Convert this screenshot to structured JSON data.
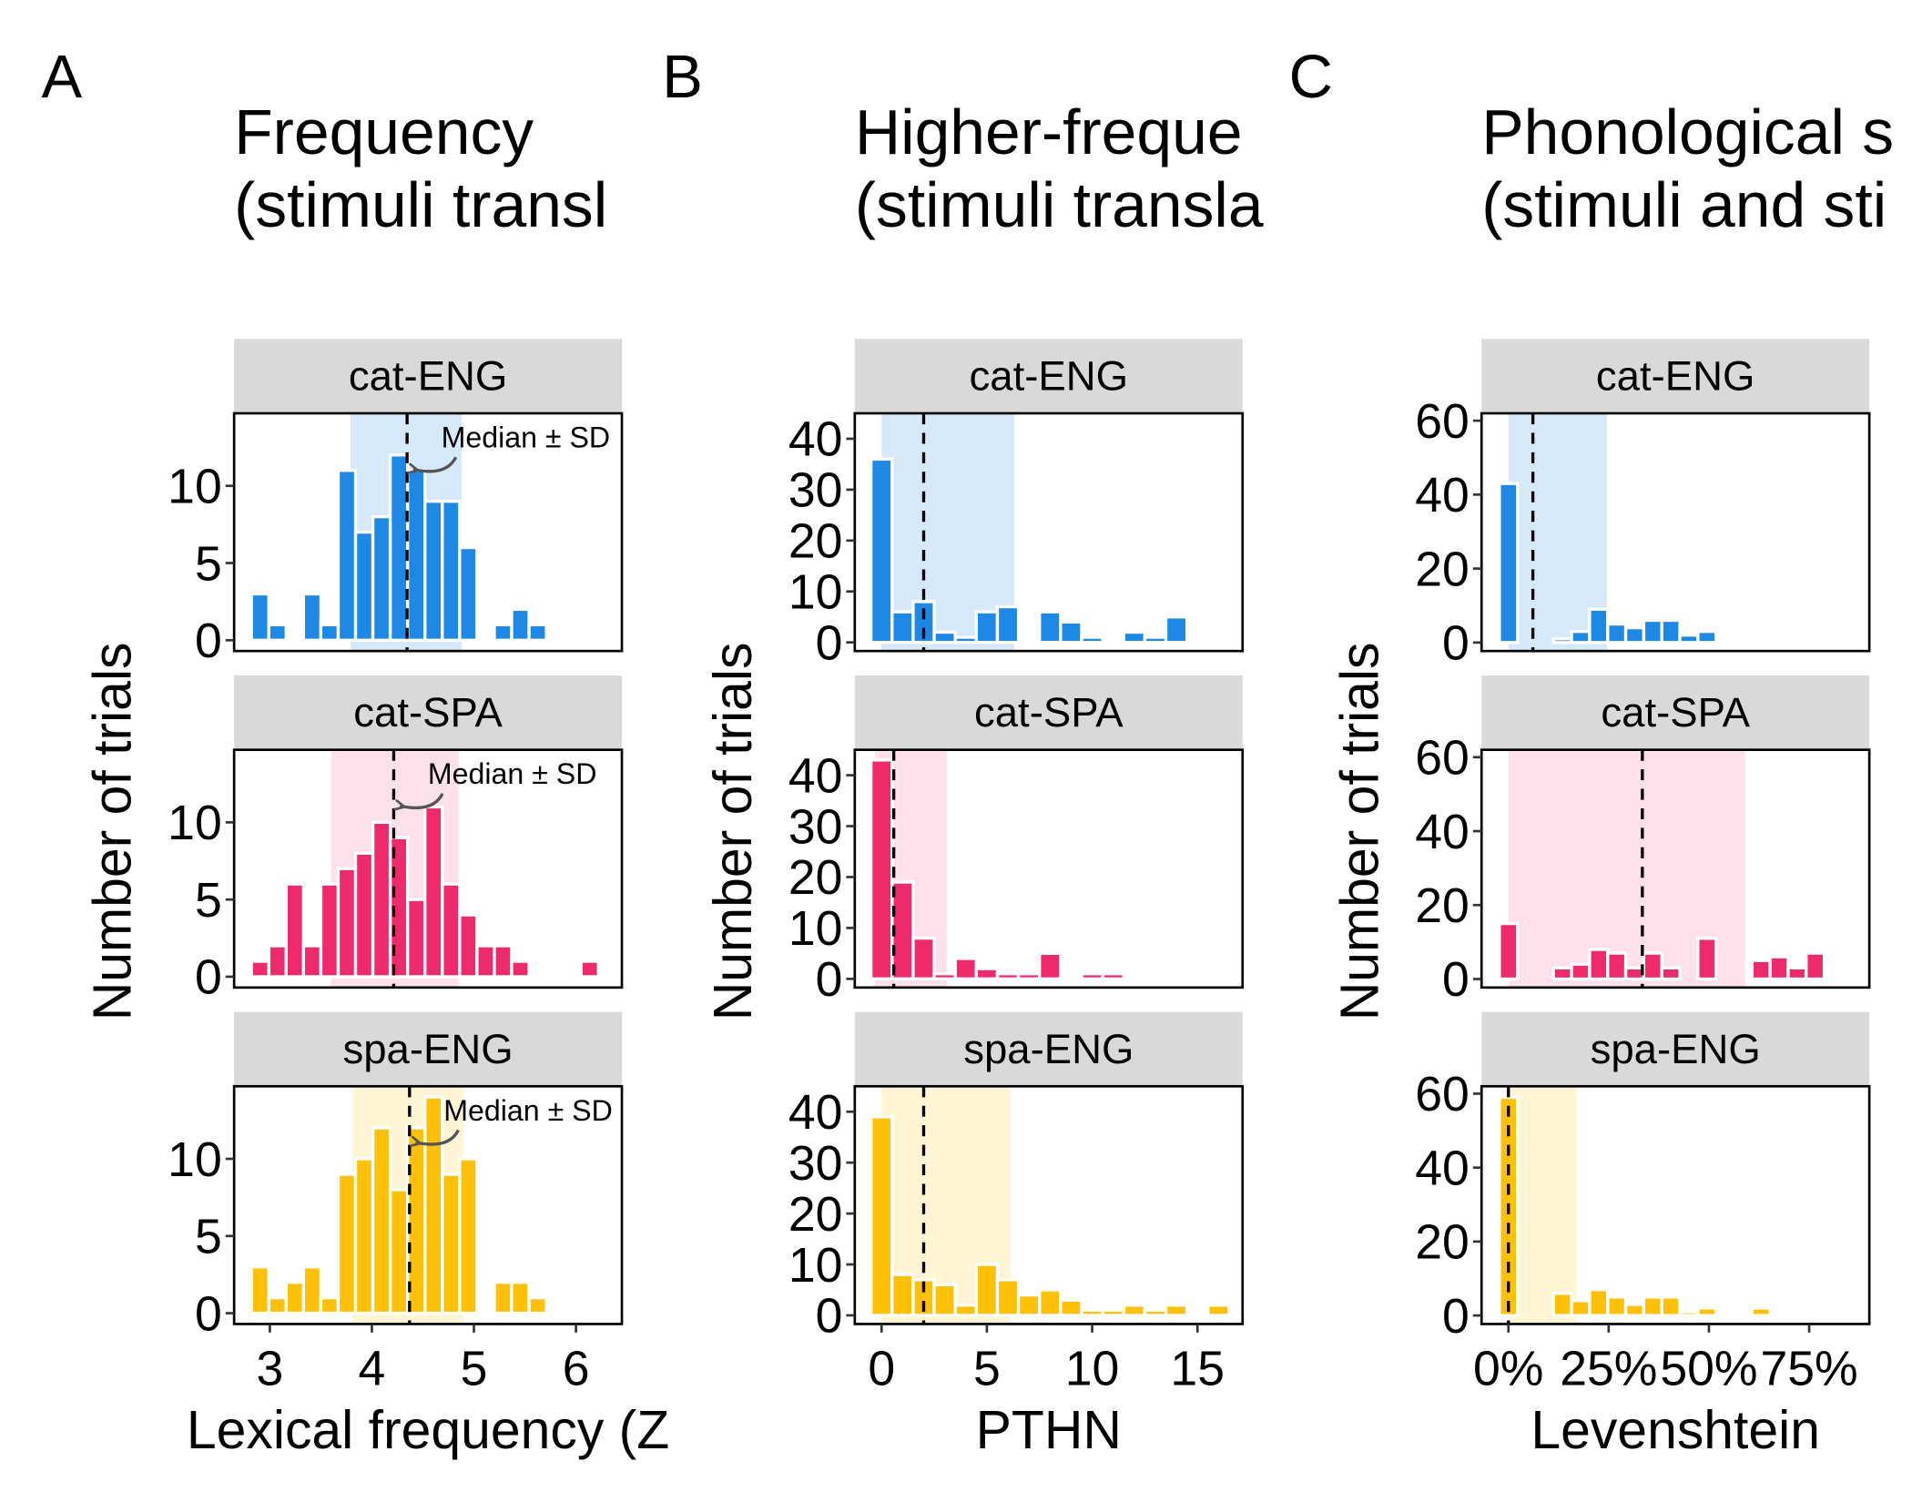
{
  "chart_data": [
    {
      "type": "histogram",
      "panel": "A",
      "title": [
        "Frequency",
        "(stimuli transl"
      ],
      "xlabel": "Lexical frequency (Z",
      "ylabel": "Number of trials",
      "bins": [
        2.82,
        2.99,
        3.16,
        3.33,
        3.5,
        3.67,
        3.84,
        4.01,
        4.18,
        4.35,
        4.52,
        4.69,
        4.86,
        5.03,
        5.2,
        5.37,
        5.54,
        5.71,
        5.88,
        6.05,
        6.22
      ],
      "xlim": [
        2.65,
        6.45
      ],
      "xticks": [
        3,
        4,
        5,
        6
      ],
      "ylim": [
        -0.7,
        14.7
      ],
      "yticks": [
        0,
        5,
        10
      ],
      "facets": [
        {
          "name": "cat-ENG",
          "color": "#1e88e5",
          "band_color": "#d6e9fb",
          "values": [
            3,
            1,
            0,
            3,
            1,
            11,
            7,
            8,
            12,
            11,
            9,
            9,
            6,
            0,
            1,
            2,
            1,
            0,
            0,
            0
          ],
          "median": 4.345,
          "band": [
            3.79,
            4.88
          ],
          "annotation": "Median ± SD"
        },
        {
          "name": "cat-SPA",
          "color": "#ee2a6b",
          "band_color": "#fde0ea",
          "values": [
            1,
            2,
            6,
            2,
            6,
            7,
            8,
            10,
            9,
            5,
            11,
            6,
            4,
            2,
            2,
            1,
            0,
            0,
            0,
            1
          ],
          "median": 4.214,
          "band": [
            3.6,
            4.85
          ],
          "annotation": "Median ± SD"
        },
        {
          "name": "spa-ENG",
          "color": "#ffc107",
          "band_color": "#fff4d4",
          "values": [
            3,
            1,
            2,
            3,
            1,
            9,
            10,
            12,
            8,
            12,
            14,
            9,
            10,
            0,
            2,
            2,
            1,
            0,
            0,
            0
          ],
          "median": 4.369,
          "band": [
            3.81,
            4.9
          ],
          "annotation": "Median ± SD"
        }
      ]
    },
    {
      "type": "histogram",
      "panel": "B",
      "title": [
        "Higher-freque",
        "(stimuli transla"
      ],
      "xlabel": "PTHN",
      "ylabel": "Number of trials",
      "bins": [
        -0.5,
        0.5,
        1.5,
        2.5,
        3.5,
        4.5,
        5.5,
        6.5,
        7.5,
        8.5,
        9.5,
        10.5,
        11.5,
        12.5,
        13.5,
        14.5,
        15.5,
        16.5
      ],
      "xlim": [
        -1.27,
        17.14
      ],
      "xticks": [
        0,
        5,
        10,
        15
      ],
      "ylim": [
        -1.7,
        45
      ],
      "yticks": [
        0,
        10,
        20,
        30,
        40
      ],
      "facets": [
        {
          "name": "cat-ENG",
          "color": "#1e88e5",
          "band_color": "#d6e9fb",
          "values": [
            36,
            6,
            8,
            2,
            1,
            6,
            7,
            0,
            6,
            4,
            1,
            0,
            2,
            1,
            5,
            0,
            0
          ],
          "median": 2,
          "band": [
            0,
            6.3
          ]
        },
        {
          "name": "cat-SPA",
          "color": "#ee2a6b",
          "band_color": "#fde0ea",
          "values": [
            43,
            19,
            8,
            1,
            4,
            2,
            1,
            1,
            5,
            0,
            1,
            1,
            0,
            0,
            0,
            0,
            0
          ],
          "median": 0.58,
          "band": [
            -0.3,
            3.1
          ]
        },
        {
          "name": "spa-ENG",
          "color": "#ffc107",
          "band_color": "#fff4d4",
          "values": [
            39,
            8,
            7,
            6,
            2,
            10,
            7,
            4,
            5,
            3,
            1,
            1,
            2,
            1,
            2,
            0,
            2
          ],
          "median": 2,
          "band": [
            0,
            6.1
          ]
        }
      ]
    },
    {
      "type": "histogram",
      "panel": "C",
      "title": [
        "Phonological s",
        "(stimuli and sti"
      ],
      "xlabel": "Levenshtein",
      "ylabel": "Number of trials",
      "bins": [
        -2.25,
        2.25,
        6.75,
        11.25,
        15.75,
        20.25,
        24.75,
        29.25,
        33.75,
        38.25,
        42.75,
        47.25,
        51.75,
        56.25,
        60.75,
        65.25,
        69.75,
        74.25,
        78.75,
        83.25,
        87.75
      ],
      "xlim": [
        -6.7,
        90
      ],
      "xticks": [
        {
          "value": 0,
          "label": "0%"
        },
        {
          "value": 25,
          "label": "25%"
        },
        {
          "value": 50,
          "label": "50%"
        },
        {
          "value": 75,
          "label": "75%"
        }
      ],
      "ylim": [
        -2.3,
        62
      ],
      "yticks": [
        0,
        20,
        40,
        60
      ],
      "facets": [
        {
          "name": "cat-ENG",
          "color": "#1e88e5",
          "band_color": "#d6e9fb",
          "values": [
            43,
            0,
            0,
            1,
            3,
            9,
            5,
            4,
            6,
            6,
            2,
            3,
            0,
            0,
            0,
            0,
            0,
            0,
            0,
            0
          ],
          "median": 6.1,
          "band": [
            0,
            24.6
          ]
        },
        {
          "name": "cat-SPA",
          "color": "#ee2a6b",
          "band_color": "#fde0ea",
          "values": [
            15,
            0,
            0,
            3,
            4,
            8,
            7,
            3,
            7,
            3,
            0,
            11,
            0,
            0,
            5,
            6,
            3,
            7,
            0,
            0
          ],
          "median": 33.4,
          "band": [
            0,
            59
          ]
        },
        {
          "name": "spa-ENG",
          "color": "#ffc107",
          "band_color": "#fff4d4",
          "values": [
            59,
            0,
            0,
            6,
            4,
            7,
            5,
            3,
            5,
            5,
            1,
            2,
            0,
            0,
            2,
            0,
            0,
            0,
            0,
            0
          ],
          "median": 0,
          "band": [
            0,
            17
          ]
        }
      ]
    }
  ]
}
